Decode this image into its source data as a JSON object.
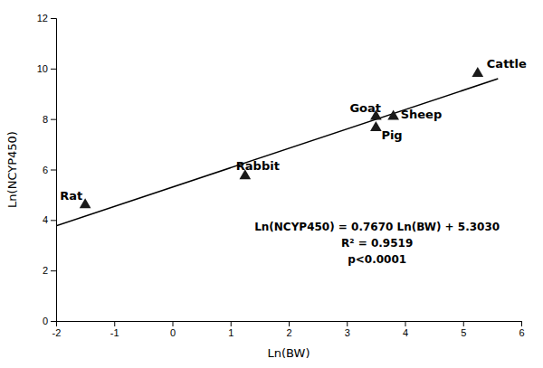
{
  "chart_data": {
    "type": "scatter",
    "x_label": "Ln(BW)",
    "y_label": "Ln(NCYP450)",
    "xlim": [
      -2,
      6
    ],
    "ylim": [
      0,
      12
    ],
    "xticks": [
      -2,
      -1,
      0,
      1,
      2,
      3,
      4,
      5,
      6
    ],
    "yticks": [
      0,
      2,
      4,
      6,
      8,
      10,
      12
    ],
    "grid": false,
    "series": [
      {
        "type": "scatter",
        "marker": "triangle",
        "color": "#1a1a1a",
        "x": [
          -1.5,
          1.25,
          3.5,
          3.5,
          3.8,
          5.25
        ],
        "values": [
          4.6,
          5.75,
          8.1,
          7.65,
          8.1,
          9.8
        ],
        "labels": [
          "Rat",
          "Rabbit",
          "Goat",
          "Pig",
          "Sheep",
          "Cattle"
        ]
      },
      {
        "type": "line",
        "color": "#000000",
        "x": [
          -2.0,
          5.6
        ],
        "values": [
          3.769,
          9.5982
        ]
      }
    ],
    "annotations": [
      "Ln(NCYP450) = 0.7670 Ln(BW) + 5.3030",
      "R² = 0.9519",
      "p<0.0001"
    ]
  }
}
